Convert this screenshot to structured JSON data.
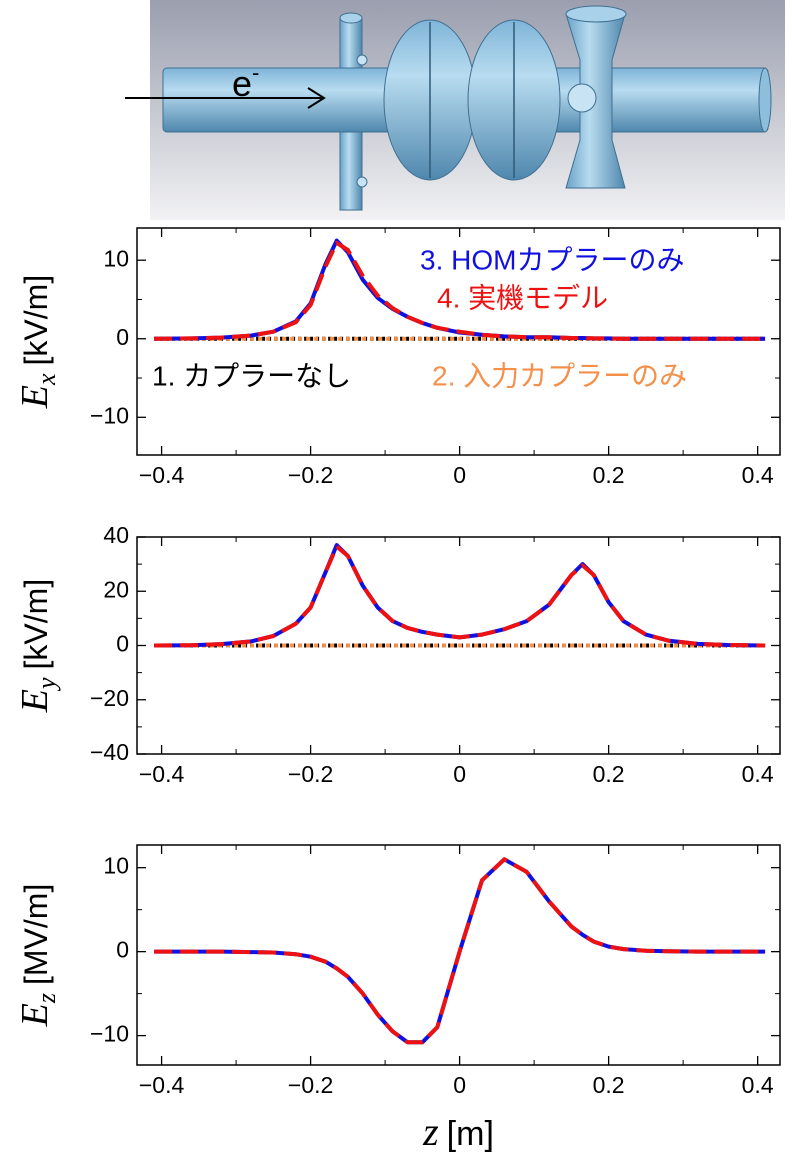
{
  "beam_label": {
    "base": "e",
    "sup": "-"
  },
  "chart_data": [
    {
      "type": "line",
      "ylabel": {
        "symbol": "E",
        "subscript": "x",
        "unit": "[kV/m]"
      },
      "xlim": [
        -0.433,
        0.43
      ],
      "ylim": [
        -14.8,
        14.1
      ],
      "xticks": [
        {
          "value": -0.4,
          "label": "−0.4"
        },
        {
          "value": -0.2,
          "label": "−0.2"
        },
        0,
        0.2,
        0.4
      ],
      "xminorticks": [
        -0.3,
        -0.1,
        0.1,
        0.3
      ],
      "yticks": [
        {
          "value": -10,
          "label": "−10"
        },
        0,
        10
      ],
      "yminorticks": [
        -5,
        5
      ],
      "x": [
        -0.41,
        -0.36,
        -0.32,
        -0.28,
        -0.25,
        -0.22,
        -0.2,
        -0.18,
        -0.165,
        -0.15,
        -0.13,
        -0.11,
        -0.09,
        -0.07,
        -0.05,
        -0.03,
        0,
        0.03,
        0.06,
        0.09,
        0.12,
        0.15,
        0.165,
        0.18,
        0.2,
        0.22,
        0.25,
        0.28,
        0.32,
        0.36,
        0.41
      ],
      "series": [
        {
          "name": "1. カプラーなし",
          "color": "#000000",
          "values": [
            0,
            0,
            0,
            0,
            0,
            0,
            0,
            0,
            0,
            0,
            0,
            0,
            0,
            0,
            0,
            0,
            0,
            0,
            0,
            0,
            0,
            0,
            0,
            0,
            0,
            0,
            0,
            0,
            0,
            0,
            0
          ]
        },
        {
          "name": "2. 入力カプラーのみ",
          "color": "#f4904a",
          "values": [
            0,
            0,
            0,
            0,
            0,
            0,
            0,
            0,
            0,
            0,
            0,
            0,
            0,
            0,
            0,
            0,
            0,
            0,
            0,
            0,
            0,
            0,
            0,
            0,
            0,
            0,
            0,
            0,
            0,
            0,
            0
          ]
        },
        {
          "name": "3. HOMカプラーのみ",
          "color": "#1010e0",
          "values": [
            0,
            0.05,
            0.15,
            0.4,
            0.9,
            2.2,
            4.5,
            9.5,
            12.5,
            11,
            7.5,
            5.2,
            3.8,
            2.8,
            2,
            1.4,
            0.8,
            0.5,
            0.3,
            0.2,
            0.2,
            0.1,
            0.1,
            0.05,
            0.05,
            0,
            0,
            0,
            0,
            0,
            0
          ]
        },
        {
          "name": "4. 実機モデル",
          "color": "#ee1111",
          "values": [
            0,
            0.05,
            0.15,
            0.4,
            0.9,
            2.1,
            4.3,
            9.2,
            12.2,
            11.3,
            8,
            5.5,
            3.9,
            2.8,
            2,
            1.4,
            0.9,
            0.5,
            0.3,
            0.2,
            0.2,
            0.1,
            0.1,
            0.05,
            0.05,
            0,
            0,
            0,
            0,
            0,
            0
          ]
        }
      ]
    },
    {
      "type": "line",
      "ylabel": {
        "symbol": "E",
        "subscript": "y",
        "unit": "[kV/m]"
      },
      "xlim": [
        -0.433,
        0.43
      ],
      "ylim": [
        -40,
        40
      ],
      "xticks": [
        {
          "value": -0.4,
          "label": "−0.4"
        },
        {
          "value": -0.2,
          "label": "−0.2"
        },
        0,
        0.2,
        0.4
      ],
      "xminorticks": [
        -0.3,
        -0.1,
        0.1,
        0.3
      ],
      "yticks": [
        {
          "value": -40,
          "label": "−40"
        },
        {
          "value": -20,
          "label": "−20"
        },
        0,
        20,
        40
      ],
      "yminorticks": [
        -30,
        -10,
        10,
        30
      ],
      "x": [
        -0.41,
        -0.36,
        -0.32,
        -0.28,
        -0.25,
        -0.22,
        -0.2,
        -0.18,
        -0.165,
        -0.15,
        -0.13,
        -0.11,
        -0.09,
        -0.07,
        -0.05,
        -0.03,
        0,
        0.03,
        0.06,
        0.09,
        0.12,
        0.15,
        0.165,
        0.18,
        0.2,
        0.22,
        0.25,
        0.28,
        0.32,
        0.36,
        0.41
      ],
      "series": [
        {
          "color": "#000000",
          "values": [
            0,
            0,
            0,
            0,
            0,
            0,
            0,
            0,
            0,
            0,
            0,
            0,
            0,
            0,
            0,
            0,
            0,
            0,
            0,
            0,
            0,
            0,
            0,
            0,
            0,
            0,
            0,
            0,
            0,
            0,
            0
          ]
        },
        {
          "color": "#f4904a",
          "values": [
            0,
            0,
            0,
            0,
            0,
            0,
            0,
            0,
            0,
            0,
            0,
            0,
            0,
            0,
            0,
            0,
            0,
            0,
            0,
            0,
            0,
            0,
            0,
            0,
            0,
            0,
            0,
            0,
            0,
            0,
            0
          ]
        },
        {
          "color": "#1010e0",
          "values": [
            0,
            0.1,
            0.5,
            1.5,
            3.5,
            8,
            14,
            27,
            37,
            33,
            22,
            14,
            9,
            6.5,
            5,
            4,
            3,
            4,
            6,
            9,
            15,
            26,
            30,
            26,
            16,
            9,
            4,
            1.8,
            0.6,
            0.2,
            0
          ]
        },
        {
          "color": "#ee1111",
          "values": [
            0,
            0.1,
            0.5,
            1.5,
            3.5,
            8,
            14,
            27,
            36.5,
            33,
            22,
            14,
            9,
            6.5,
            5,
            4,
            3,
            4,
            6,
            9,
            15,
            26,
            29.5,
            26,
            16,
            9,
            4,
            1.8,
            0.6,
            0.2,
            0
          ]
        }
      ]
    },
    {
      "type": "line",
      "ylabel": {
        "symbol": "E",
        "subscript": "z",
        "unit": "[MV/m]"
      },
      "xlabel": {
        "symbol": "z",
        "unit": "[m]"
      },
      "xlim": [
        -0.433,
        0.43
      ],
      "ylim": [
        -13.5,
        12.7
      ],
      "xticks": [
        {
          "value": -0.4,
          "label": "−0.4"
        },
        {
          "value": -0.2,
          "label": "−0.2"
        },
        0,
        0.2,
        0.4
      ],
      "xminorticks": [
        -0.3,
        -0.1,
        0.1,
        0.3
      ],
      "yticks": [
        {
          "value": -10,
          "label": "−10"
        },
        0,
        10
      ],
      "yminorticks": [
        -5,
        5
      ],
      "x": [
        -0.41,
        -0.36,
        -0.32,
        -0.28,
        -0.25,
        -0.22,
        -0.2,
        -0.18,
        -0.165,
        -0.15,
        -0.13,
        -0.11,
        -0.09,
        -0.07,
        -0.05,
        -0.03,
        0,
        0.03,
        0.06,
        0.09,
        0.12,
        0.15,
        0.165,
        0.18,
        0.2,
        0.22,
        0.25,
        0.28,
        0.32,
        0.36,
        0.41
      ],
      "series": [
        {
          "color": "#1010e0",
          "values": [
            0,
            0,
            0,
            -0.05,
            -0.1,
            -0.3,
            -0.6,
            -1.2,
            -2,
            -3,
            -5,
            -7.5,
            -9.5,
            -10.8,
            -10.8,
            -9,
            0,
            8.5,
            11,
            9.5,
            6,
            3,
            2,
            1.2,
            0.6,
            0.3,
            0.1,
            0.05,
            0,
            0,
            0
          ]
        },
        {
          "color": "#ee1111",
          "values": [
            0,
            0,
            0,
            -0.05,
            -0.1,
            -0.3,
            -0.6,
            -1.2,
            -2,
            -3,
            -5,
            -7.5,
            -9.5,
            -10.8,
            -10.8,
            -9,
            0,
            8.5,
            11,
            9.5,
            6,
            3,
            2,
            1.2,
            0.6,
            0.3,
            0.1,
            0.05,
            0,
            0,
            0
          ]
        }
      ]
    }
  ]
}
